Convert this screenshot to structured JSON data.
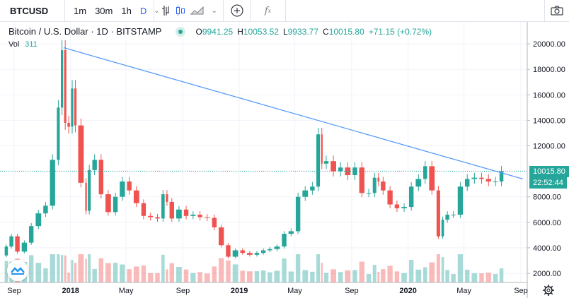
{
  "toolbar": {
    "symbol": "BTCUSD",
    "intervals": [
      "1m",
      "30m",
      "1h",
      "D"
    ],
    "active_interval": "D",
    "icons": [
      "chevron-down-icon",
      "bar-chart-icon",
      "candles-icon",
      "area-chart-icon",
      "chevron-down-icon",
      "plus-circle-icon",
      "function-icon",
      "camera-icon"
    ]
  },
  "legend": {
    "title": "Bitcoin / U.S. Dollar · 1D · BITSTAMP",
    "o_label": "O",
    "o": "9941.25",
    "h_label": "H",
    "h": "10053.52",
    "l_label": "L",
    "l": "9933.77",
    "c_label": "C",
    "c": "10015.80",
    "change": "+71.15 (+0.72%)",
    "vol_label": "Vol",
    "vol": "311"
  },
  "price_tag": {
    "price": "10015.80",
    "countdown": "22:52:44"
  },
  "colors": {
    "up": "#26a69a",
    "down": "#ef5350",
    "trendline": "#5b9cf6",
    "accent": "#2962ff"
  },
  "chart_data": {
    "type": "candlestick",
    "title": "Bitcoin / U.S. Dollar · 1D · BITSTAMP",
    "yticks": [
      2000,
      4000,
      6000,
      8000,
      10000,
      12000,
      14000,
      16000,
      18000,
      20000
    ],
    "ytick_labels": [
      "2000.00",
      "4000.00",
      "6000.00",
      "8000.00",
      "",
      "12000.00",
      "14000.00",
      "16000.00",
      "18000.00",
      "20000.00"
    ],
    "ylim": [
      1300,
      21000
    ],
    "xticks": [
      {
        "date": "2017-09-01",
        "label": "Sep",
        "bold": false
      },
      {
        "date": "2018-01-01",
        "label": "2018",
        "bold": true
      },
      {
        "date": "2018-05-01",
        "label": "May",
        "bold": false
      },
      {
        "date": "2018-09-01",
        "label": "Sep",
        "bold": false
      },
      {
        "date": "2019-01-01",
        "label": "2019",
        "bold": true
      },
      {
        "date": "2019-05-01",
        "label": "May",
        "bold": false
      },
      {
        "date": "2019-09-01",
        "label": "Sep",
        "bold": false
      },
      {
        "date": "2020-01-01",
        "label": "2020",
        "bold": true
      },
      {
        "date": "2020-05-01",
        "label": "May",
        "bold": false
      },
      {
        "date": "2020-09-01",
        "label": "Sep",
        "bold": false
      }
    ],
    "grid": true,
    "last_price": 10015.8,
    "trendline": {
      "start": {
        "date": "2017-12-17",
        "price": 19700
      },
      "end": {
        "date": "2020-09-05",
        "price": 9400
      }
    },
    "closes": [
      [
        "2017-08-10",
        3400
      ],
      [
        "2017-08-20",
        4100
      ],
      [
        "2017-09-01",
        4900
      ],
      [
        "2017-09-15",
        3700
      ],
      [
        "2017-10-01",
        4400
      ],
      [
        "2017-10-15",
        5700
      ],
      [
        "2017-11-01",
        6700
      ],
      [
        "2017-11-15",
        7300
      ],
      [
        "2017-12-01",
        10900
      ],
      [
        "2017-12-10",
        15000
      ],
      [
        "2017-12-17",
        19500
      ],
      [
        "2017-12-24",
        13800
      ],
      [
        "2018-01-01",
        13500
      ],
      [
        "2018-01-08",
        16500
      ],
      [
        "2018-01-15",
        13600
      ],
      [
        "2018-02-01",
        9100
      ],
      [
        "2018-02-06",
        6900
      ],
      [
        "2018-02-15",
        10100
      ],
      [
        "2018-03-01",
        10900
      ],
      [
        "2018-03-15",
        8200
      ],
      [
        "2018-04-01",
        6800
      ],
      [
        "2018-04-15",
        8000
      ],
      [
        "2018-05-01",
        9200
      ],
      [
        "2018-05-15",
        8500
      ],
      [
        "2018-06-01",
        7500
      ],
      [
        "2018-06-15",
        6500
      ],
      [
        "2018-07-01",
        6400
      ],
      [
        "2018-07-15",
        6300
      ],
      [
        "2018-07-25",
        8200
      ],
      [
        "2018-08-01",
        7600
      ],
      [
        "2018-08-15",
        6300
      ],
      [
        "2018-09-01",
        7000
      ],
      [
        "2018-09-15",
        6500
      ],
      [
        "2018-10-01",
        6600
      ],
      [
        "2018-10-15",
        6400
      ],
      [
        "2018-11-01",
        6350
      ],
      [
        "2018-11-15",
        5600
      ],
      [
        "2018-12-01",
        4200
      ],
      [
        "2018-12-15",
        3300
      ],
      [
        "2019-01-01",
        3800
      ],
      [
        "2019-01-15",
        3600
      ],
      [
        "2019-02-01",
        3450
      ],
      [
        "2019-02-15",
        3600
      ],
      [
        "2019-03-01",
        3800
      ],
      [
        "2019-03-15",
        3900
      ],
      [
        "2019-04-01",
        4100
      ],
      [
        "2019-04-15",
        5100
      ],
      [
        "2019-05-01",
        5300
      ],
      [
        "2019-05-15",
        8000
      ],
      [
        "2019-06-01",
        8500
      ],
      [
        "2019-06-15",
        8800
      ],
      [
        "2019-06-26",
        12900
      ],
      [
        "2019-07-01",
        10600
      ],
      [
        "2019-07-15",
        10800
      ],
      [
        "2019-08-01",
        10000
      ],
      [
        "2019-08-15",
        10300
      ],
      [
        "2019-09-01",
        9700
      ],
      [
        "2019-09-15",
        10300
      ],
      [
        "2019-10-01",
        8300
      ],
      [
        "2019-10-15",
        8300
      ],
      [
        "2019-10-26",
        9500
      ],
      [
        "2019-11-01",
        9200
      ],
      [
        "2019-11-15",
        8500
      ],
      [
        "2019-12-01",
        7400
      ],
      [
        "2019-12-15",
        7100
      ],
      [
        "2020-01-01",
        7200
      ],
      [
        "2020-01-15",
        8800
      ],
      [
        "2020-02-01",
        9400
      ],
      [
        "2020-02-13",
        10400
      ],
      [
        "2020-03-01",
        8500
      ],
      [
        "2020-03-12",
        4900
      ],
      [
        "2020-03-20",
        6200
      ],
      [
        "2020-04-01",
        6600
      ],
      [
        "2020-04-15",
        6600
      ],
      [
        "2020-05-01",
        8800
      ],
      [
        "2020-05-15",
        9400
      ],
      [
        "2020-06-01",
        9500
      ],
      [
        "2020-06-15",
        9400
      ],
      [
        "2020-07-01",
        9200
      ],
      [
        "2020-07-15",
        9200
      ],
      [
        "2020-07-27",
        10015.8
      ]
    ]
  }
}
